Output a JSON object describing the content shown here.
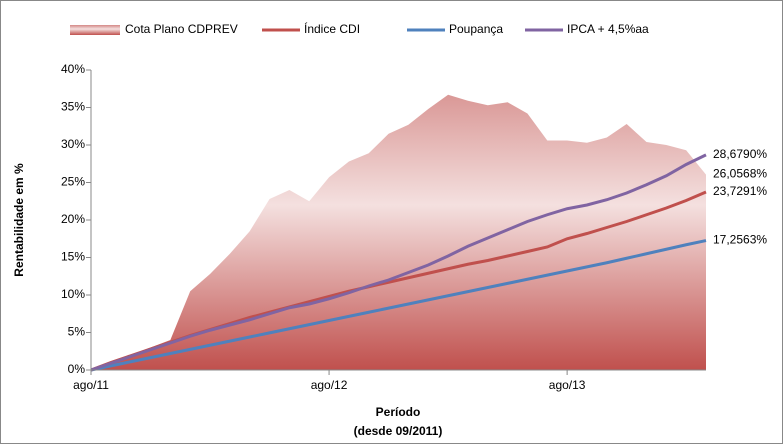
{
  "chart_data": {
    "type": "line",
    "ylabel": "Rentabilidade em %",
    "xlabel": [
      "Período",
      "(desde 09/2011)"
    ],
    "categories": [
      "ago/11",
      null,
      null,
      null,
      null,
      null,
      null,
      null,
      null,
      null,
      null,
      null,
      "ago/12",
      null,
      null,
      null,
      null,
      null,
      null,
      null,
      null,
      null,
      null,
      null,
      "ago/13",
      null,
      null,
      null,
      null,
      null,
      null,
      null
    ],
    "ylim": [
      0,
      40
    ],
    "yticks": [
      {
        "value": 0,
        "label": "0%"
      },
      {
        "value": 5,
        "label": "5%"
      },
      {
        "value": 10,
        "label": "10%"
      },
      {
        "value": 15,
        "label": "15%"
      },
      {
        "value": 20,
        "label": "20%"
      },
      {
        "value": 25,
        "label": "25%"
      },
      {
        "value": 30,
        "label": "30%"
      },
      {
        "value": 35,
        "label": "35%"
      },
      {
        "value": 40,
        "label": "40%"
      }
    ],
    "grid": false,
    "series": [
      {
        "name": "Cota Plano CDPREV",
        "type": "area",
        "color": "#c0504d",
        "values": [
          0,
          1.0,
          2.0,
          3.0,
          4.0,
          10.5,
          12.8,
          15.5,
          18.5,
          22.8,
          24.0,
          22.5,
          25.7,
          27.8,
          28.9,
          31.5,
          32.7,
          34.8,
          36.7,
          35.9,
          35.3,
          35.7,
          34.2,
          30.6,
          30.6,
          30.3,
          31.0,
          32.8,
          30.4,
          30.0,
          29.3,
          26.0568
        ],
        "value_labels": [
          null,
          null,
          null,
          null,
          null,
          null,
          null,
          null,
          null,
          null,
          null,
          null,
          null,
          null,
          null,
          null,
          null,
          null,
          null,
          null,
          null,
          null,
          null,
          null,
          null,
          null,
          null,
          null,
          null,
          null,
          null,
          "26,0568%"
        ]
      },
      {
        "name": "Índice CDI",
        "type": "line",
        "color": "#c0504d",
        "values": [
          0,
          1.0,
          1.9,
          2.8,
          3.7,
          4.6,
          5.4,
          6.2,
          7.0,
          7.7,
          8.4,
          9.1,
          9.8,
          10.5,
          11.1,
          11.7,
          12.3,
          12.9,
          13.5,
          14.1,
          14.6,
          15.2,
          15.8,
          16.4,
          17.5,
          18.2,
          19.0,
          19.8,
          20.7,
          21.6,
          22.6,
          23.7291
        ],
        "value_labels": [
          null,
          null,
          null,
          null,
          null,
          null,
          null,
          null,
          null,
          null,
          null,
          null,
          null,
          null,
          null,
          null,
          null,
          null,
          null,
          null,
          null,
          null,
          null,
          null,
          null,
          null,
          null,
          null,
          null,
          null,
          null,
          "23,7291%"
        ]
      },
      {
        "name": "Poupança",
        "type": "line",
        "color": "#4f81bd",
        "values": [
          0,
          0.55,
          1.1,
          1.65,
          2.2,
          2.75,
          3.3,
          3.85,
          4.4,
          4.95,
          5.5,
          6.05,
          6.6,
          7.15,
          7.7,
          8.25,
          8.8,
          9.35,
          9.9,
          10.45,
          11.0,
          11.55,
          12.1,
          12.65,
          13.2,
          13.75,
          14.3,
          14.9,
          15.5,
          16.1,
          16.7,
          17.2563
        ],
        "value_labels": [
          null,
          null,
          null,
          null,
          null,
          null,
          null,
          null,
          null,
          null,
          null,
          null,
          null,
          null,
          null,
          null,
          null,
          null,
          null,
          null,
          null,
          null,
          null,
          null,
          null,
          null,
          null,
          null,
          null,
          null,
          null,
          "17,2563%"
        ]
      },
      {
        "name": "IPCA + 4,5%aa",
        "type": "line",
        "color": "#8064a2",
        "values": [
          0,
          0.9,
          1.8,
          2.7,
          3.6,
          4.5,
          5.3,
          6.0,
          6.7,
          7.5,
          8.3,
          8.8,
          9.5,
          10.3,
          11.2,
          12.0,
          13.0,
          14.0,
          15.2,
          16.5,
          17.6,
          18.7,
          19.8,
          20.7,
          21.5,
          22.0,
          22.7,
          23.6,
          24.7,
          25.9,
          27.4,
          28.679
        ],
        "value_labels": [
          null,
          null,
          null,
          null,
          null,
          null,
          null,
          null,
          null,
          null,
          null,
          null,
          null,
          null,
          null,
          null,
          null,
          null,
          null,
          null,
          null,
          null,
          null,
          null,
          null,
          null,
          null,
          null,
          null,
          null,
          null,
          "28,6790%"
        ]
      }
    ]
  }
}
